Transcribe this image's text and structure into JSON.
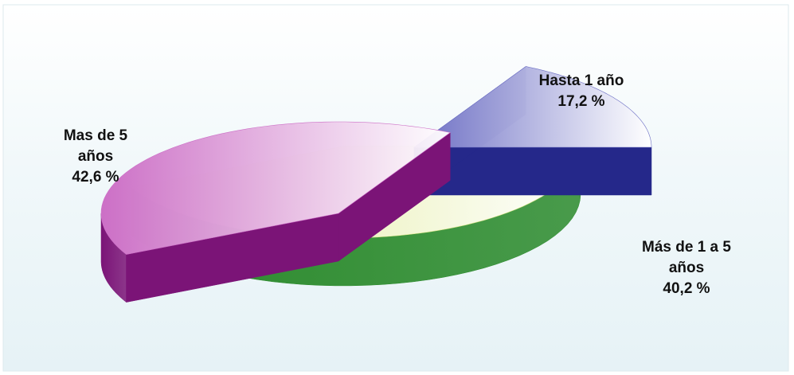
{
  "chart_data": {
    "type": "pie",
    "style": "3d-exploded",
    "title": "",
    "slices": [
      {
        "name_lines": [
          "Hasta 1 año"
        ],
        "value_label": "17,2 %",
        "value": 17.2,
        "top_color": "#6c6ec4",
        "side_color": "#25288a"
      },
      {
        "name_lines": [
          "Más de 1 a 5",
          "años"
        ],
        "value_label": "40,2 %",
        "value": 40.2,
        "top_color": "#cc6fc6",
        "side_color": "#7b1477"
      },
      {
        "name_lines": [
          "Mas de 5",
          "años"
        ],
        "value_label": "42,6 %",
        "value": 42.6,
        "top_color": "#dfe98e",
        "side_color": "#2b8a2c"
      }
    ],
    "legend": "none"
  }
}
